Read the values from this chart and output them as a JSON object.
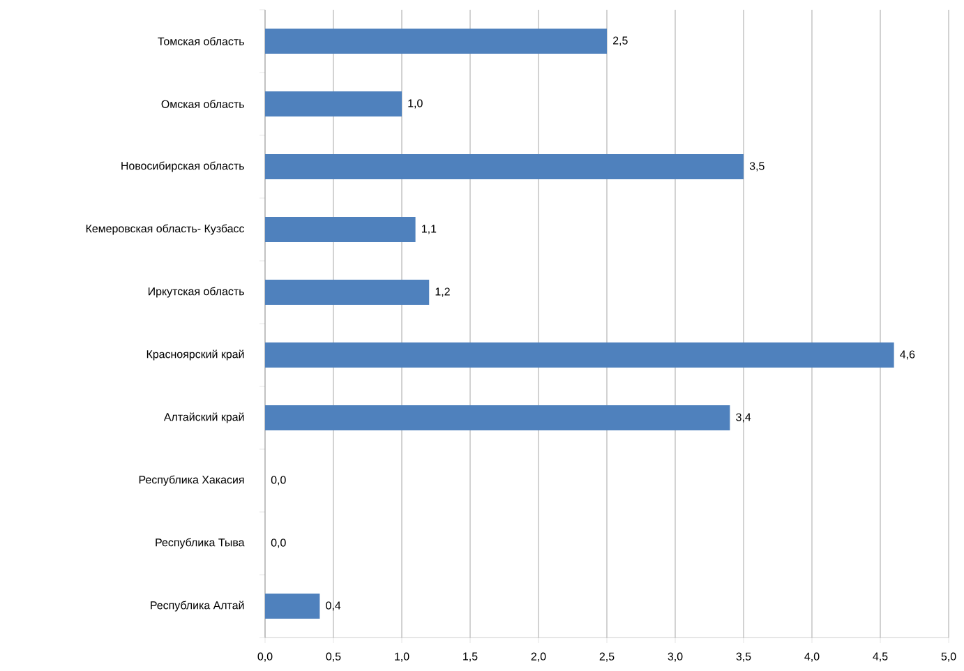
{
  "chart_data": {
    "type": "bar",
    "orientation": "horizontal",
    "categories": [
      "Томская область",
      "Омская область",
      "Новосибирская область",
      "Кемеровская область- Кузбасс",
      "Иркутская область",
      "Красноярский край",
      "Алтайский край",
      "Республика Хакасия",
      "Республика Тыва",
      "Республика Алтай"
    ],
    "values": [
      2.5,
      1.0,
      3.5,
      1.1,
      1.2,
      4.6,
      3.4,
      0.0,
      0.0,
      0.4
    ],
    "value_labels": [
      "2,5",
      "1,0",
      "3,5",
      "1,1",
      "1,2",
      "4,6",
      "3,4",
      "0,0",
      "0,0",
      "0,4"
    ],
    "color": "#4f81bd",
    "xlim": [
      0,
      5
    ],
    "xticks": [
      {
        "value": 0,
        "label": "0,0"
      },
      {
        "value": 0.5,
        "label": "0,5"
      },
      {
        "value": 1,
        "label": "1,0"
      },
      {
        "value": 1.5,
        "label": "1,5"
      },
      {
        "value": 2,
        "label": "2,0"
      },
      {
        "value": 2.5,
        "label": "2,5"
      },
      {
        "value": 3,
        "label": "3,0"
      },
      {
        "value": 3.5,
        "label": "3,5"
      },
      {
        "value": 4,
        "label": "4,0"
      },
      {
        "value": 4.5,
        "label": "4,5"
      },
      {
        "value": 5,
        "label": "5,0"
      }
    ],
    "grid": "x"
  }
}
